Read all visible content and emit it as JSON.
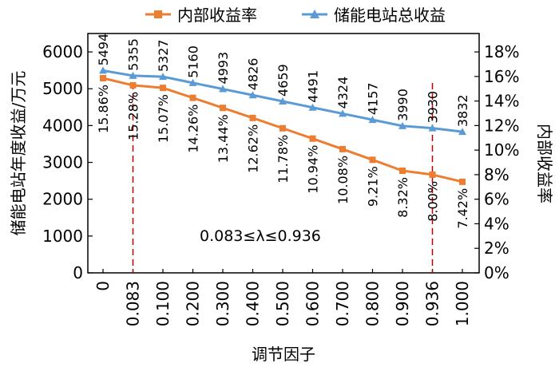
{
  "chart_data": {
    "type": "line",
    "xlabel": "调节因子",
    "ylabel_left": "储能电站年度收益/万元",
    "ylabel_right": "内部收益率",
    "categories": [
      "0",
      "0.083",
      "0.100",
      "0.200",
      "0.300",
      "0.400",
      "0.500",
      "0.600",
      "0.700",
      "0.800",
      "0.900",
      "0.936",
      "1.000"
    ],
    "y_left": {
      "min": 0,
      "max": 6500,
      "ticks": [
        "0",
        "1000",
        "2000",
        "3000",
        "4000",
        "5000",
        "6000"
      ],
      "tick_values": [
        0,
        1000,
        2000,
        3000,
        4000,
        5000,
        6000
      ]
    },
    "y_right": {
      "min": 0,
      "max": 0.195,
      "ticks": [
        "0%",
        "2%",
        "4%",
        "6%",
        "8%",
        "10%",
        "12%",
        "14%",
        "16%",
        "18%"
      ],
      "tick_values": [
        0,
        0.02,
        0.04,
        0.06,
        0.08,
        0.1,
        0.12,
        0.14,
        0.16,
        0.18
      ]
    },
    "series": [
      {
        "name": "内部收益率",
        "axis": "right",
        "color": "#ED7D31",
        "marker": "square",
        "values": [
          0.1586,
          0.1528,
          0.1507,
          0.1426,
          0.1344,
          0.1262,
          0.1178,
          0.1094,
          0.1008,
          0.0921,
          0.0832,
          0.08,
          0.0742
        ],
        "labels": [
          "15.86%",
          "15.28%",
          "15.07%",
          "14.26%",
          "13.44%",
          "12.62%",
          "11.78%",
          "10.94%",
          "10.08%",
          "9.21%",
          "8.32%",
          "8.00%",
          "7.42%"
        ]
      },
      {
        "name": "储能电站总收益",
        "axis": "left",
        "color": "#5B9BD5",
        "marker": "triangle",
        "values": [
          5494,
          5355,
          5327,
          5160,
          4993,
          4826,
          4659,
          4491,
          4324,
          4157,
          3990,
          3930,
          3832
        ],
        "labels": [
          "5494",
          "5355",
          "5327",
          "5160",
          "4993",
          "4826",
          "4659",
          "4491",
          "4324",
          "4157",
          "3990",
          "3930",
          "3832"
        ]
      }
    ],
    "annotation": "0.083≤λ≤0.936",
    "reference_lines": [
      {
        "at": "0.083",
        "color": "#C00000",
        "style": "dashed"
      },
      {
        "at": "0.936",
        "color": "#C00000",
        "style": "dashed"
      }
    ],
    "legend_position": "top",
    "grid": false
  }
}
